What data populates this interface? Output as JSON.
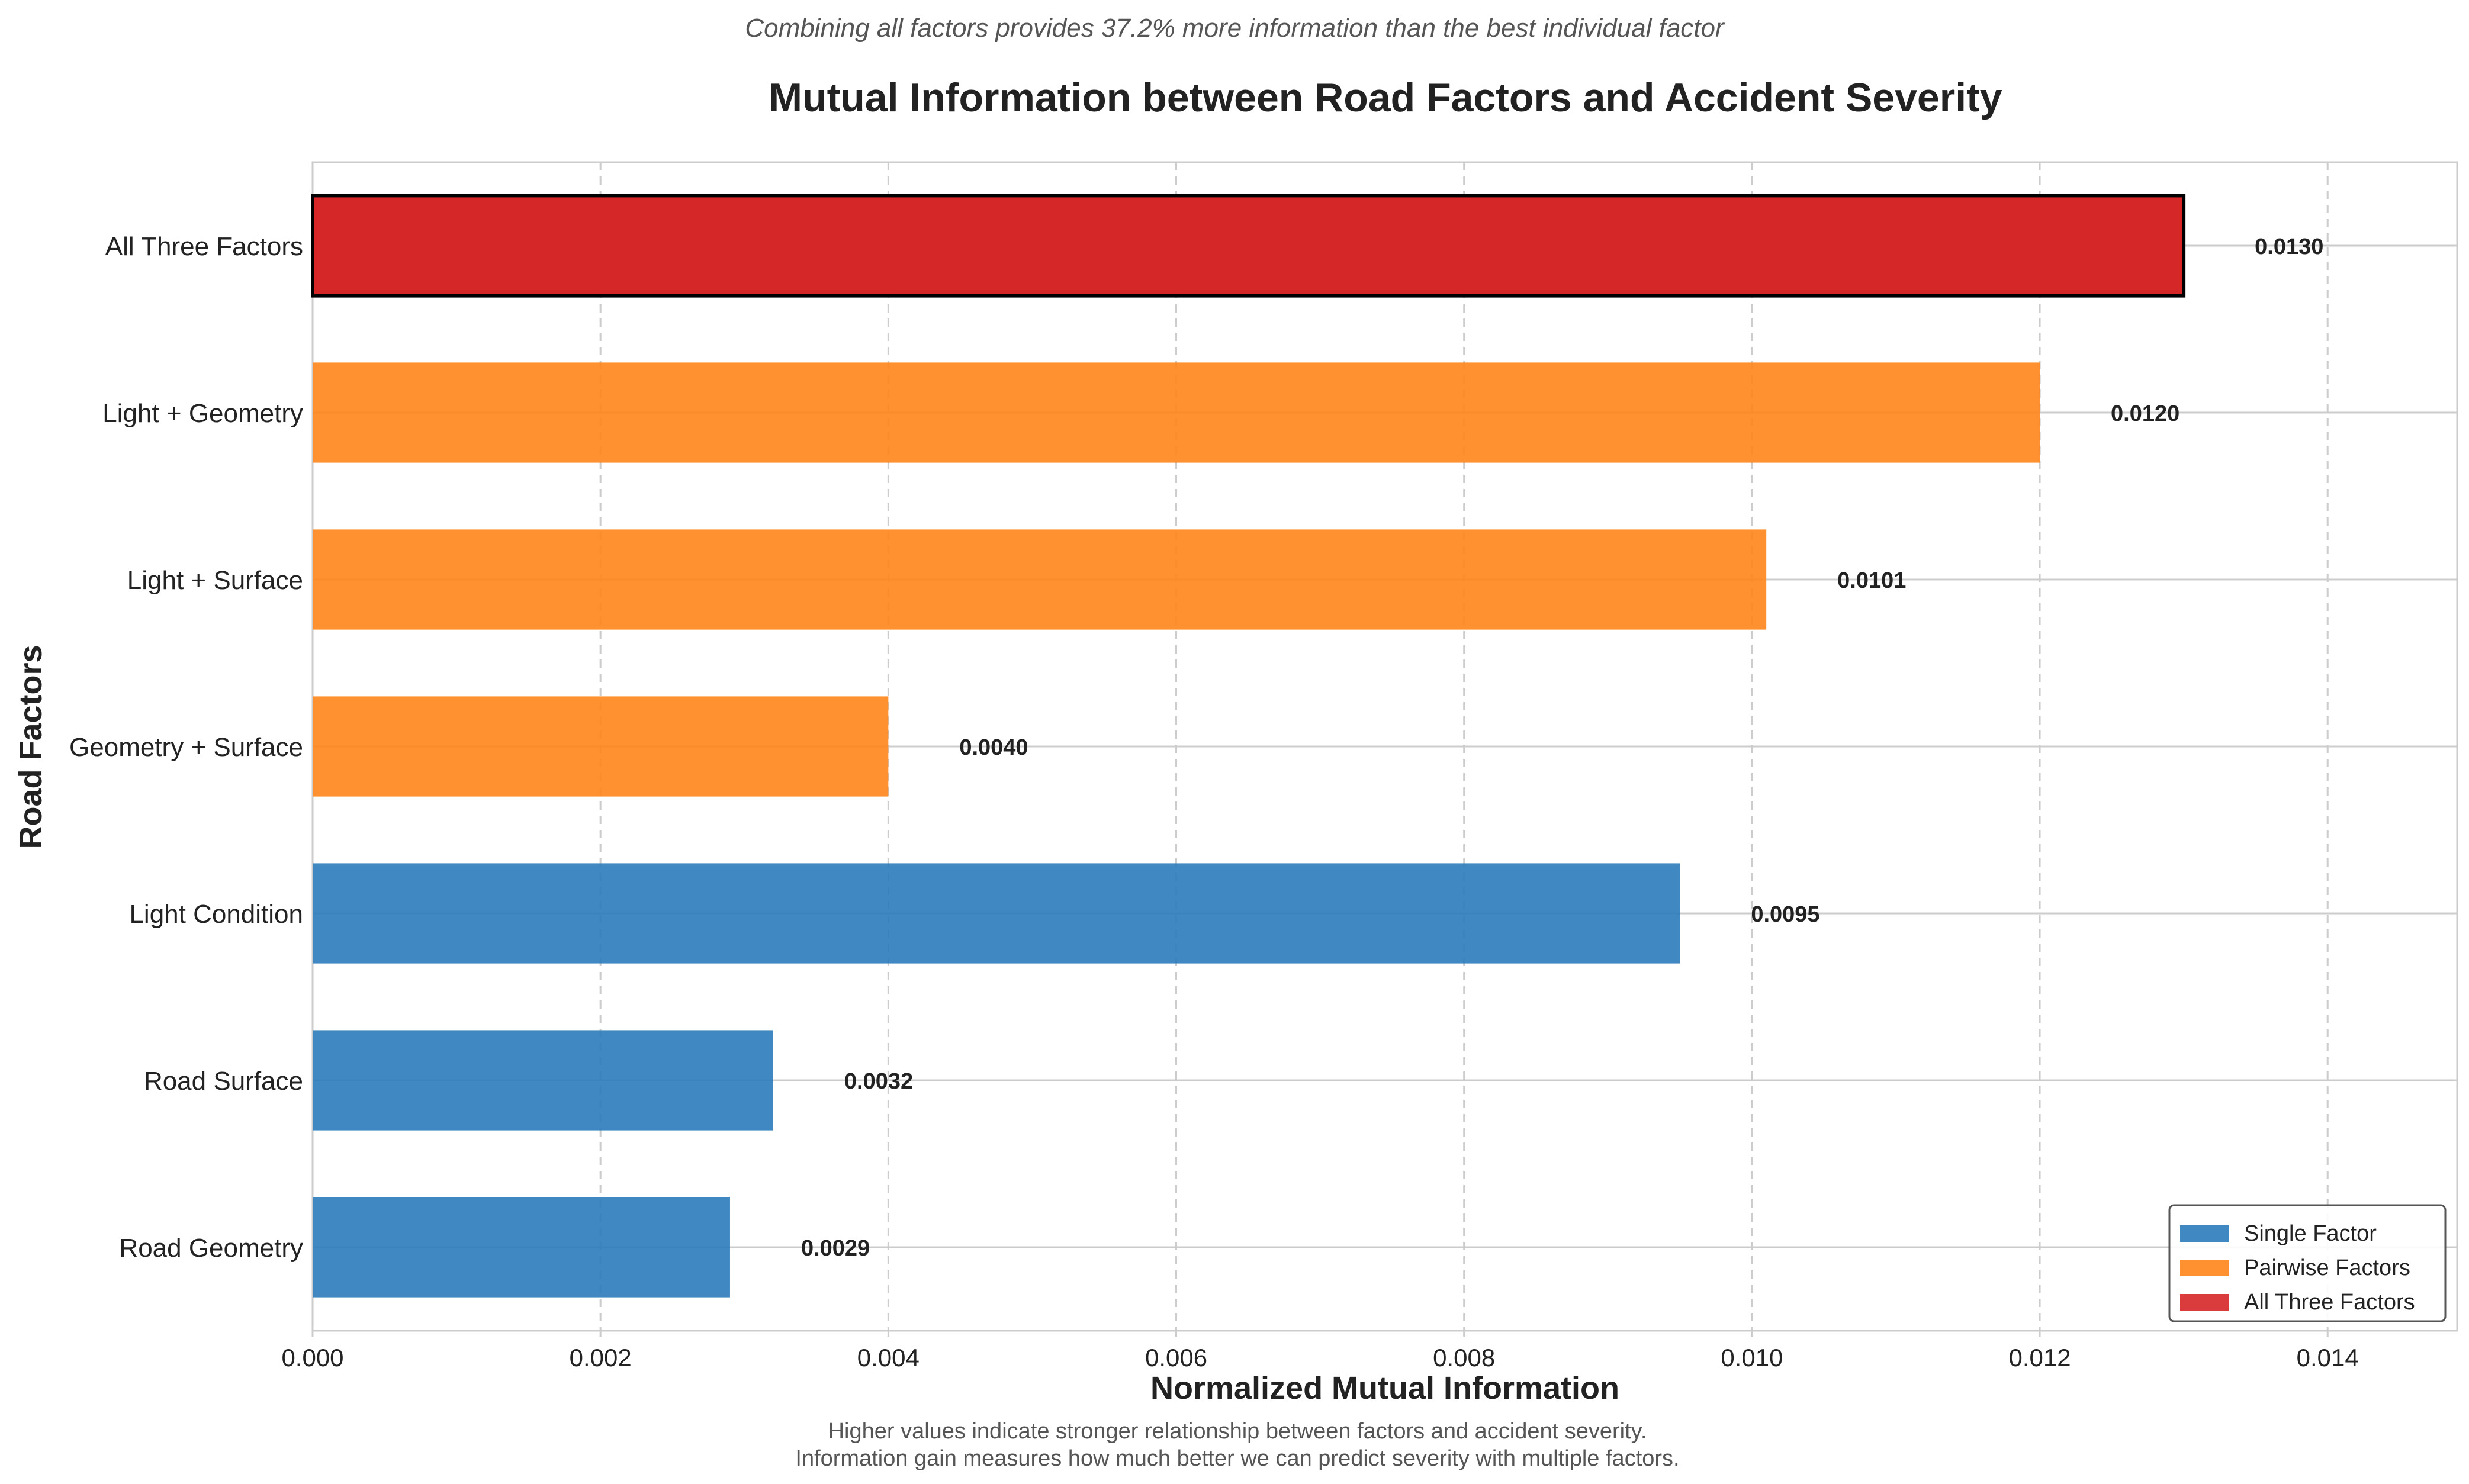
{
  "chart_data": {
    "type": "bar",
    "orientation": "horizontal",
    "supertitle": "Combining all factors provides 37.2% more information than the best individual factor",
    "title": "Mutual Information between Road Factors and Accident Severity",
    "xlabel": "Normalized Mutual Information",
    "ylabel": "Road Factors",
    "xlim": [
      0,
      0.0149
    ],
    "xticks": [
      0.0,
      0.002,
      0.004,
      0.006,
      0.008,
      0.01,
      0.012,
      0.014
    ],
    "xtick_labels": [
      "0.000",
      "0.002",
      "0.004",
      "0.006",
      "0.008",
      "0.010",
      "0.012",
      "0.014"
    ],
    "grid": true,
    "legend_position": "lower-right",
    "categories": [
      "All Three Factors",
      "Light + Geometry",
      "Light + Surface",
      "Geometry + Surface",
      "Light Condition",
      "Road Surface",
      "Road Geometry"
    ],
    "values": [
      0.013,
      0.012,
      0.0101,
      0.004,
      0.0095,
      0.0032,
      0.0029
    ],
    "value_labels": [
      "0.0130",
      "0.0120",
      "0.0101",
      "0.0040",
      "0.0095",
      "0.0032",
      "0.0029"
    ],
    "groups": [
      "all",
      "pair",
      "pair",
      "pair",
      "single",
      "single",
      "single"
    ],
    "legend": [
      {
        "key": "single",
        "label": "Single Factor",
        "color": "#2b7bba"
      },
      {
        "key": "pair",
        "label": "Pairwise Factors",
        "color": "#ff8519"
      },
      {
        "key": "all",
        "label": "All Three Factors",
        "color": "#d62728"
      }
    ],
    "footnote_lines": [
      "Higher values indicate stronger relationship between factors and accident severity.",
      "Information gain measures how much better we can predict severity with multiple factors."
    ]
  }
}
